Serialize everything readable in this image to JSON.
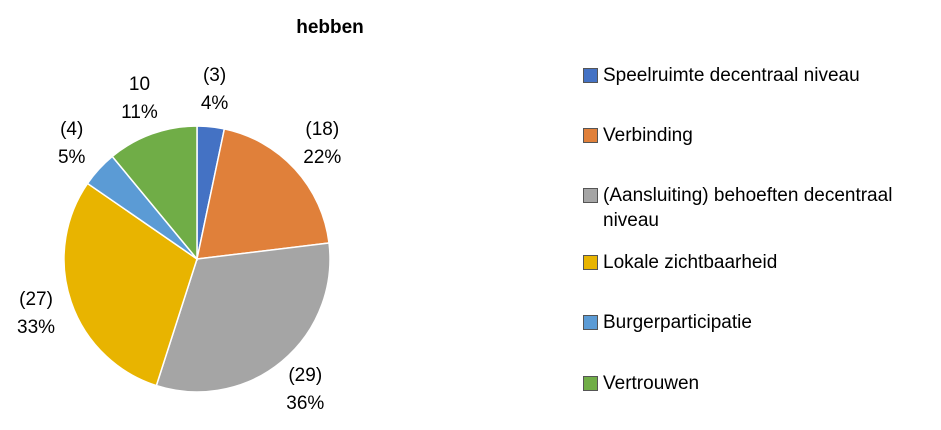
{
  "chart_data": {
    "type": "pie",
    "title": "hebben",
    "categories": [
      "Speelruimte decentraal niveau",
      "Verbinding",
      "(Aansluiting) behoeften decentraal niveau",
      "Lokale zichtbaarheid",
      "Burgerparticipatie",
      "Vertrouwen"
    ],
    "values": [
      3,
      18,
      29,
      27,
      4,
      10
    ],
    "value_labels": [
      "(3)",
      "(18)",
      "(29)",
      "(27)",
      "(4)",
      "10"
    ],
    "percentages": [
      4,
      22,
      36,
      33,
      5,
      11
    ],
    "percentage_labels": [
      "4%",
      "22%",
      "36%",
      "33%",
      "5%",
      "11%"
    ],
    "colors": [
      "#4472c4",
      "#e0803a",
      "#a5a5a5",
      "#e8b400",
      "#5b9bd5",
      "#70ad47"
    ],
    "legend": "right"
  }
}
